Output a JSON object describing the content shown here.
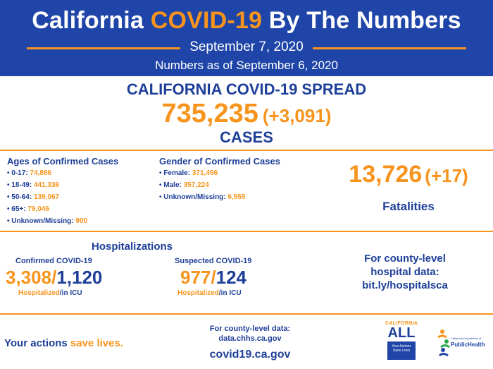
{
  "header": {
    "title_prefix": "California ",
    "title_accent": "COVID-19",
    "title_suffix": " By The Numbers",
    "date": "September 7, 2020",
    "as_of": "Numbers as of September 6, 2020"
  },
  "spread": {
    "title": "CALIFORNIA COVID-19 SPREAD",
    "cases_total": "735,235",
    "cases_change": "(+3,091)",
    "cases_label": "CASES"
  },
  "ages": {
    "title": "Ages of Confirmed Cases",
    "items": [
      {
        "label": "• 0-17: ",
        "value": "74,886"
      },
      {
        "label": "• 18-49: ",
        "value": "441,336"
      },
      {
        "label": "• 50-64: ",
        "value": "139,067"
      },
      {
        "label": "• 65+: ",
        "value": "79,046"
      },
      {
        "label": "• Unknown/Missing: ",
        "value": "900"
      }
    ]
  },
  "gender": {
    "title": "Gender of Confirmed Cases",
    "items": [
      {
        "label": "• Female: ",
        "value": "371,456"
      },
      {
        "label": "• Male: ",
        "value": "357,224"
      },
      {
        "label": "• Unknown/Missing: ",
        "value": "6,555"
      }
    ]
  },
  "fatalities": {
    "total": "13,726",
    "change": "(+17)",
    "label": "Fatalities"
  },
  "hospitalizations": {
    "title": "Hospitalizations",
    "confirmed": {
      "label": "Confirmed COVID-19",
      "hospitalized": "3,308",
      "icu": "1,120"
    },
    "suspected": {
      "label": "Suspected COVID-19",
      "hospitalized": "977",
      "icu": "124"
    },
    "legend_hospitalized": "Hospitalized",
    "legend_icu": "/in ICU",
    "slash": "/"
  },
  "county_hospital": {
    "line1": "For county-level",
    "line2": "hospital data:",
    "line3": "bit.ly/hospitalsca"
  },
  "footer": {
    "slogan_prefix": "Your actions ",
    "slogan_accent": "save lives.",
    "county_line1": "For county-level data:",
    "county_line2": "data.chhs.ca.gov",
    "site": "covid19.ca.gov"
  },
  "logos": {
    "ca_all_top": "CALIFORNIA",
    "ca_all_word": "ALL",
    "ca_all_box": "Your Actions Save Lives",
    "cdph_small": "California Department of",
    "cdph_name": "PublicHealth"
  },
  "colors": {
    "navy": "#1f45a8",
    "orange": "#f7941d"
  }
}
